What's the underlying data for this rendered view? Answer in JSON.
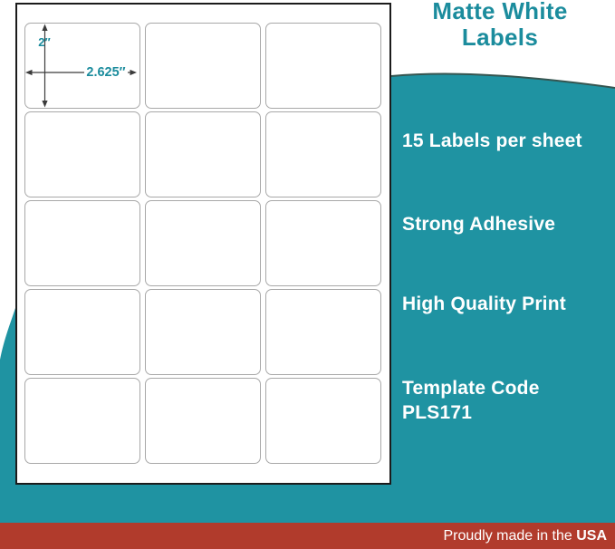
{
  "colors": {
    "teal": "#1F93A2",
    "teal_dark": "#1B8C9D",
    "red": "#B13B2C"
  },
  "header": {
    "title_line1": "Matte White",
    "title_line2": "Labels"
  },
  "features": [
    "15 Labels per sheet",
    "Strong Adhesive",
    "High Quality Print"
  ],
  "template_code": {
    "label": "Template Code",
    "code": "PLS171"
  },
  "sheet": {
    "rows": 5,
    "cols": 3,
    "label_height": "2″",
    "label_width": "2.625″"
  },
  "footer": {
    "prefix": "Proudly made in the ",
    "bold": "USA"
  }
}
